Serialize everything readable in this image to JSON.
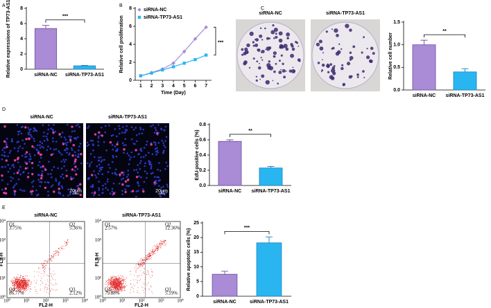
{
  "chart_data": [
    {
      "panel": "A",
      "type": "bar",
      "ylabel": "Relative expressions of TP73-AS1",
      "categories": [
        "siRNA-NC",
        "siRNA-TP73-AS1"
      ],
      "values": [
        5.35,
        0.45
      ],
      "errors": [
        0.4,
        0.05
      ],
      "colors": [
        "#a98bd6",
        "#29b6f0"
      ],
      "edge_colors": [
        "#6a4fa0",
        "#1f7fbf"
      ],
      "ylim": [
        0,
        8
      ],
      "yticks": [
        0,
        2,
        4,
        6,
        8
      ],
      "significance": "***"
    },
    {
      "panel": "B",
      "type": "line",
      "xlabel": "Time (Day)",
      "ylabel": "Relative cell proliferation",
      "x": [
        1,
        2,
        3,
        4,
        5,
        6,
        7
      ],
      "series": [
        {
          "name": "siRNA-NC",
          "color": "#a98bd6",
          "marker": "diamond",
          "values": [
            0.5,
            0.85,
            1.25,
            1.9,
            3.2,
            4.6,
            5.9
          ]
        },
        {
          "name": "siRNA-TP73-AS1",
          "color": "#29b6f0",
          "marker": "square",
          "values": [
            0.5,
            0.8,
            1.15,
            1.5,
            1.9,
            2.3,
            2.8
          ]
        }
      ],
      "xlim": [
        0.5,
        7.5
      ],
      "xticks": [
        1,
        2,
        3,
        4,
        5,
        6,
        7
      ],
      "ylim": [
        0,
        8
      ],
      "yticks": [
        0,
        2,
        4,
        6,
        8
      ],
      "legend": "upper-left",
      "significance": "***"
    },
    {
      "panel": "C",
      "type": "bar",
      "image_kind": "plate",
      "image_labels": [
        "siRNA-NC",
        "siRNA-TP73-AS1"
      ],
      "ylabel": "Relative cell number",
      "categories": [
        "siRNA-NC",
        "siRNA-TP73-AS1"
      ],
      "values": [
        1.0,
        0.4
      ],
      "errors": [
        0.1,
        0.07
      ],
      "colors": [
        "#a98bd6",
        "#29b6f0"
      ],
      "edge_colors": [
        "#6a4fa0",
        "#1f7fbf"
      ],
      "ylim": [
        0,
        1.5
      ],
      "yticks": [
        {
          "value": 0,
          "label": "0.0"
        },
        0.5,
        {
          "value": 1,
          "label": "1.0"
        },
        1.5
      ],
      "significance": "**"
    },
    {
      "panel": "D",
      "type": "bar",
      "image_kind": "fluorescence",
      "image_labels": [
        "siRNA-NC",
        "siRNA-TP73-AS1"
      ],
      "scale_bar": "20μm",
      "ylabel": "EdU-positive cells (%)",
      "categories": [
        "siRNA-NC",
        "siRNA-TP73-AS1"
      ],
      "values": [
        0.58,
        0.23
      ],
      "errors": [
        0.02,
        0.02
      ],
      "colors": [
        "#a98bd6",
        "#29b6f0"
      ],
      "edge_colors": [
        "#6a4fa0",
        "#1f7fbf"
      ],
      "ylim": [
        0,
        0.8
      ],
      "yticks": [
        {
          "value": 0,
          "label": "0.0"
        },
        0.2,
        0.4,
        0.6,
        0.8
      ],
      "significance": "**"
    },
    {
      "panel": "E",
      "type": "bar",
      "image_kind": "flow",
      "image_labels": [
        "siRNA-NC",
        "siRNA-TP73-AS1"
      ],
      "flow": {
        "gates": [
          "Q1",
          "Q2",
          "Q3",
          "Q4"
        ],
        "percents": [
          [
            "3.75%",
            "5.36%",
            "2.12%",
            "86.77%"
          ],
          [
            "2.57%",
            "12.36%",
            "5.19%",
            "79.88%"
          ]
        ],
        "xlabel": "FL2-H",
        "ylabel": "FL3-H",
        "ticks": [
          "10⁰",
          "10¹",
          "10²",
          "10³",
          "10⁴"
        ]
      },
      "ylabel": "Relative apoptotic cells (%)",
      "categories": [
        "siRNA-NC",
        "siRNA-TP73-AS1"
      ],
      "values": [
        7.5,
        18.2
      ],
      "errors": [
        1.0,
        2.0
      ],
      "colors": [
        "#a98bd6",
        "#29b6f0"
      ],
      "edge_colors": [
        "#6a4fa0",
        "#1f7fbf"
      ],
      "ylim": [
        0,
        25
      ],
      "yticks": [
        0,
        5,
        10,
        15,
        20,
        25
      ],
      "significance": "***"
    }
  ]
}
